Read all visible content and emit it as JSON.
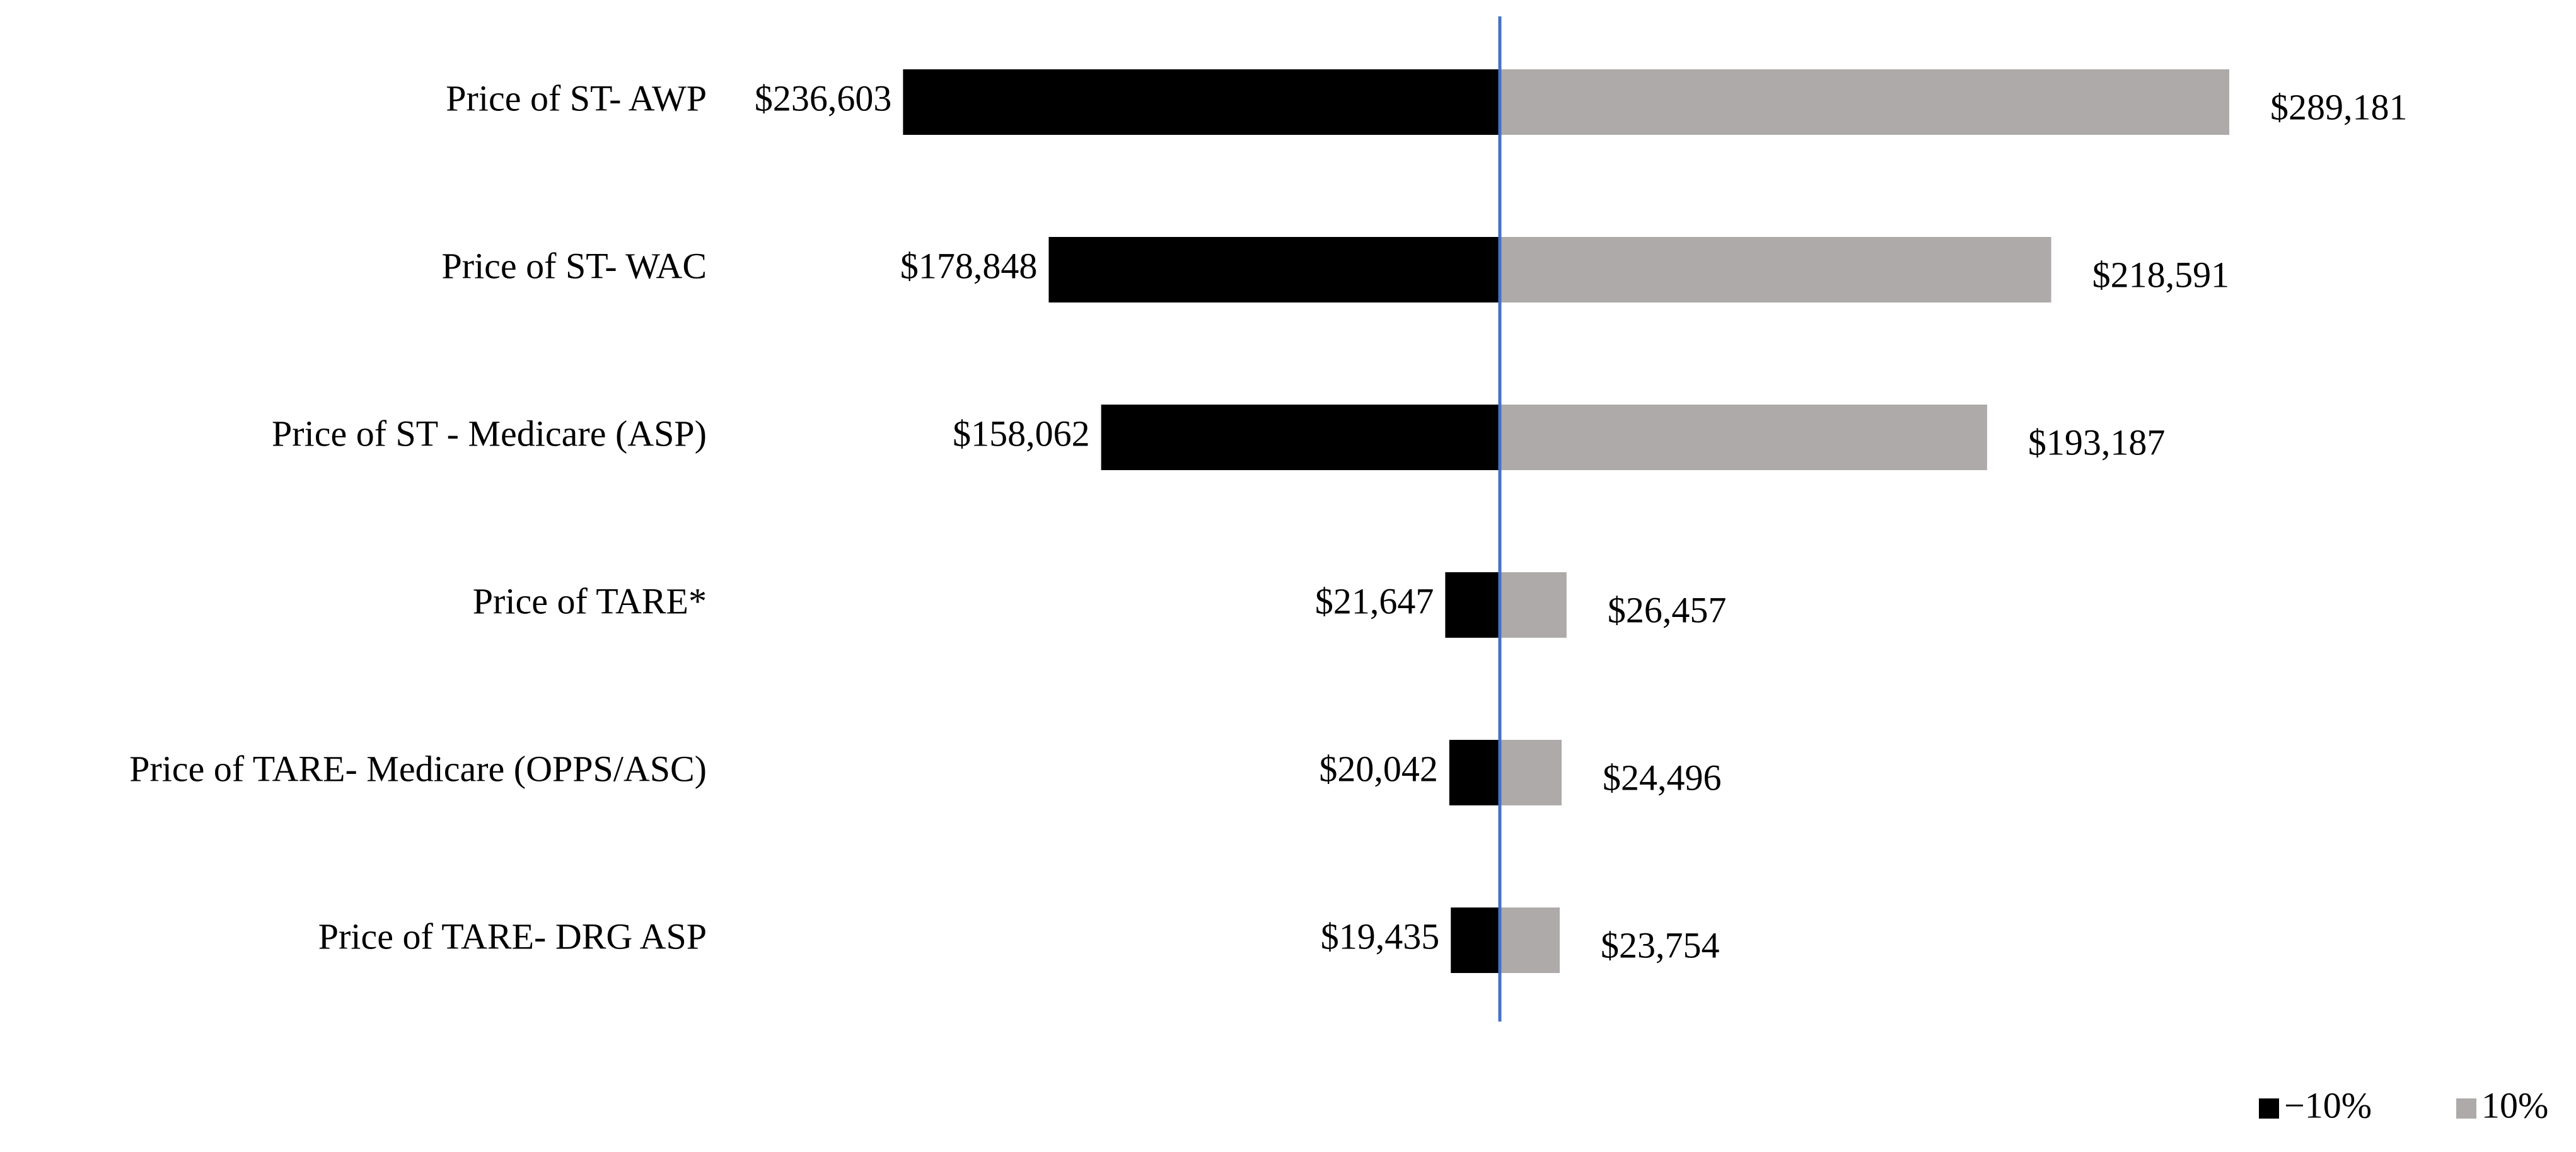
{
  "chart_data": {
    "type": "tornado",
    "categories": [
      "Price of ST- AWP",
      "Price of ST- WAC",
      "Price of ST - Medicare (ASP)",
      "Price of TARE*",
      "Price of TARE- Medicare (OPPS/ASC)",
      "Price of TARE- DRG ASP"
    ],
    "series": [
      {
        "name": "−10%",
        "color": "#000000",
        "side": "left",
        "values": [
          236603,
          178848,
          158062,
          21647,
          20042,
          19435
        ],
        "value_labels": [
          "$236,603",
          "$178,848",
          "$158,062",
          "$21,647",
          "$20,042",
          "$19,435"
        ]
      },
      {
        "name": "10%",
        "color": "#aeaaaa",
        "side": "right",
        "values": [
          289181,
          218591,
          193187,
          26457,
          24496,
          23754
        ],
        "value_labels": [
          "$289,181",
          "$218,591",
          "$193,187",
          "$26,457",
          "$24,496",
          "$23,754"
        ]
      }
    ],
    "center_line_color": "#4472c4"
  }
}
